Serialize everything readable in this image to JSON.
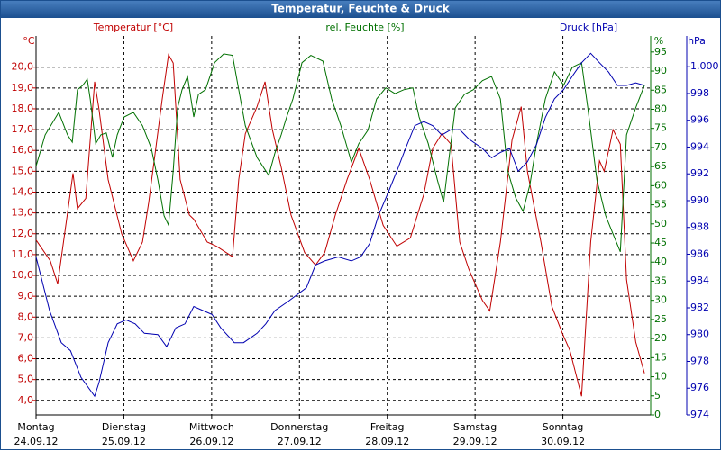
{
  "chart_data": {
    "type": "line",
    "title": "Temperatur, Feuchte & Druck",
    "ylabel": "Temperatur [°C]",
    "yunit": "°C",
    "y2label": "rel. Feuchte [%]",
    "y2unit": "%",
    "y3label": "Druck [hPa]",
    "y3unit": "hPa",
    "grid": true,
    "xlim": [
      0,
      168
    ],
    "xticks": [
      {
        "value": 0,
        "label": "Montag",
        "date": "24.09.12"
      },
      {
        "value": 24,
        "label": "Dienstag",
        "date": "25.09.12"
      },
      {
        "value": 48,
        "label": "Mittwoch",
        "date": "26.09.12"
      },
      {
        "value": 72,
        "label": "Donnerstag",
        "date": "27.09.12"
      },
      {
        "value": 96,
        "label": "Freitag",
        "date": "28.09.12"
      },
      {
        "value": 120,
        "label": "Samstag",
        "date": "29.09.12"
      },
      {
        "value": 144,
        "label": "Sonntag",
        "date": "30.09.12"
      }
    ],
    "ylim": [
      3.3,
      21.5
    ],
    "yticks": [
      {
        "value": 4,
        "label": "4,0"
      },
      {
        "value": 5,
        "label": "5,0"
      },
      {
        "value": 6,
        "label": "6,0"
      },
      {
        "value": 7,
        "label": "7,0"
      },
      {
        "value": 8,
        "label": "8,0"
      },
      {
        "value": 9,
        "label": "9,0"
      },
      {
        "value": 10,
        "label": "10,0"
      },
      {
        "value": 11,
        "label": "11,0"
      },
      {
        "value": 12,
        "label": "12,0"
      },
      {
        "value": 13,
        "label": "13,0"
      },
      {
        "value": 14,
        "label": "14,0"
      },
      {
        "value": 15,
        "label": "15,0"
      },
      {
        "value": 16,
        "label": "16,0"
      },
      {
        "value": 17,
        "label": "17,0"
      },
      {
        "value": 18,
        "label": "18,0"
      },
      {
        "value": 19,
        "label": "19,0"
      },
      {
        "value": 20,
        "label": "20,0"
      }
    ],
    "y2lim": [
      0,
      99.2
    ],
    "y2ticks": [
      0,
      5,
      10,
      15,
      20,
      25,
      30,
      35,
      40,
      45,
      50,
      55,
      60,
      65,
      70,
      75,
      80,
      85,
      90,
      95
    ],
    "y3lim": [
      974,
      1002.3
    ],
    "y3ticks": [
      974,
      976,
      978,
      980,
      982,
      984,
      986,
      988,
      990,
      992,
      994,
      996,
      998,
      {
        "value": 1000,
        "label": "1.000"
      }
    ],
    "series": [
      {
        "name": "Temperatur",
        "color": "#c00000",
        "axis": "y",
        "x": [
          0,
          3.9,
          5.9,
          10.1,
          11.3,
          13.6,
          16.0,
          17.2,
          19.7,
          23.4,
          26.6,
          29.1,
          30.8,
          34.5,
          36.2,
          37.5,
          39.4,
          41.9,
          43.1,
          46.8,
          49.3,
          53.7,
          55.4,
          57.2,
          60.4,
          62.6,
          64.6,
          67.0,
          69.7,
          73.4,
          76.4,
          78.9,
          81.8,
          85.0,
          88.2,
          91.2,
          94.9,
          98.6,
          102.3,
          106.0,
          108.4,
          110.9,
          113.4,
          115.8,
          118.3,
          122.0,
          124.0,
          126.9,
          130.1,
          132.6,
          134.3,
          138.0,
          141.0,
          143.9,
          145.9,
          149.1,
          151.6,
          154.0,
          155.3,
          157.7,
          159.7,
          161.4,
          163.9,
          166.3
        ],
        "values": [
          11.7,
          10.7,
          9.6,
          14.9,
          13.2,
          13.7,
          19.3,
          18.0,
          14.6,
          12.0,
          10.7,
          11.6,
          13.5,
          18.5,
          20.6,
          20.2,
          14.6,
          12.9,
          12.7,
          11.6,
          11.4,
          10.9,
          14.6,
          16.8,
          18.1,
          19.3,
          17.0,
          15.2,
          12.9,
          11.1,
          10.5,
          11.1,
          12.9,
          14.6,
          16.1,
          14.6,
          12.4,
          11.4,
          11.8,
          13.9,
          16.1,
          16.8,
          16.3,
          11.6,
          10.3,
          8.8,
          8.3,
          11.6,
          16.5,
          18.1,
          15.0,
          11.6,
          8.5,
          7.2,
          6.4,
          4.2,
          11.6,
          15.5,
          15.0,
          17.0,
          16.3,
          9.8,
          6.8,
          5.3
        ]
      },
      {
        "name": "rel. Feuchte",
        "color": "#007000",
        "axis": "y2",
        "x": [
          0,
          2.5,
          6.2,
          8.6,
          9.9,
          11.3,
          12.8,
          14.0,
          14.8,
          16.3,
          17.7,
          19.2,
          20.9,
          22.2,
          24.1,
          26.6,
          29.1,
          31.5,
          33.3,
          35.0,
          36.2,
          37.5,
          38.7,
          39.9,
          41.4,
          43.1,
          44.4,
          46.3,
          48.8,
          51.3,
          53.7,
          55.4,
          57.2,
          60.4,
          63.6,
          65.3,
          67.0,
          68.5,
          70.2,
          72.7,
          75.1,
          78.4,
          80.8,
          83.3,
          86.2,
          88.2,
          90.7,
          93.1,
          95.6,
          98.1,
          100.5,
          103.0,
          104.7,
          107.2,
          109.7,
          111.4,
          112.9,
          114.6,
          117.1,
          119.5,
          122.0,
          124.5,
          126.9,
          128.9,
          131.1,
          133.1,
          135.0,
          136.8,
          139.2,
          141.7,
          144.2,
          146.6,
          149.1,
          150.8,
          153.3,
          155.7,
          158.2,
          159.7,
          161.4,
          163.9,
          166.3
        ],
        "values": [
          65.1,
          73.3,
          79.2,
          73.3,
          71.4,
          85.1,
          86.3,
          87.9,
          82.7,
          71.0,
          73.3,
          73.8,
          67.4,
          73.3,
          78.0,
          79.2,
          75.7,
          69.8,
          61.5,
          52.1,
          49.7,
          63.9,
          80.4,
          85.1,
          88.6,
          78.0,
          83.9,
          85.1,
          92.2,
          94.5,
          94.1,
          85.1,
          75.7,
          67.4,
          62.7,
          68.6,
          73.3,
          78.0,
          82.7,
          92.2,
          94.1,
          92.6,
          82.7,
          75.7,
          66.2,
          71.0,
          74.5,
          82.7,
          85.6,
          84.1,
          85.1,
          85.6,
          78.0,
          71.0,
          61.5,
          55.6,
          67.4,
          80.4,
          83.9,
          85.1,
          87.5,
          88.6,
          82.7,
          63.9,
          56.8,
          53.3,
          60.3,
          71.0,
          82.7,
          89.8,
          86.3,
          91.0,
          92.2,
          80.4,
          61.5,
          52.1,
          46.2,
          42.7,
          73.3,
          80.4,
          86.3
        ]
      },
      {
        "name": "Druck",
        "color": "#0000b0",
        "axis": "y3",
        "x": [
          0,
          3.7,
          6.9,
          9.4,
          12.3,
          16.0,
          17.2,
          19.7,
          22.2,
          24.6,
          27.1,
          29.6,
          33.3,
          35.7,
          38.2,
          40.7,
          43.1,
          45.6,
          48.1,
          50.5,
          54.2,
          56.7,
          60.4,
          62.8,
          65.3,
          69.0,
          73.9,
          76.4,
          78.9,
          82.6,
          86.2,
          88.7,
          91.2,
          93.6,
          96.1,
          98.6,
          101.0,
          103.5,
          106.0,
          108.4,
          110.9,
          113.4,
          115.8,
          118.3,
          122.0,
          124.5,
          126.9,
          129.4,
          131.8,
          134.3,
          136.8,
          139.2,
          141.7,
          144.2,
          146.6,
          149.1,
          151.6,
          154.0,
          156.5,
          158.9,
          161.4,
          163.9,
          166.3
        ],
        "values": [
          985.8,
          981.8,
          979.4,
          978.8,
          976.8,
          975.4,
          976.4,
          979.4,
          980.8,
          981.1,
          980.8,
          980.1,
          980.0,
          979.1,
          980.5,
          980.8,
          982.1,
          981.8,
          981.5,
          980.5,
          979.4,
          979.4,
          980.1,
          980.8,
          981.8,
          982.5,
          983.5,
          985.2,
          985.5,
          985.8,
          985.5,
          985.8,
          986.8,
          988.9,
          990.5,
          992.2,
          993.9,
          995.6,
          995.9,
          995.6,
          994.9,
          995.3,
          995.3,
          994.6,
          993.9,
          993.2,
          993.6,
          993.9,
          992.2,
          992.9,
          994.2,
          996.2,
          997.6,
          998.3,
          999.3,
          1000.3,
          1001.0,
          1000.3,
          999.6,
          998.6,
          998.6,
          998.8,
          998.6
        ]
      }
    ]
  }
}
